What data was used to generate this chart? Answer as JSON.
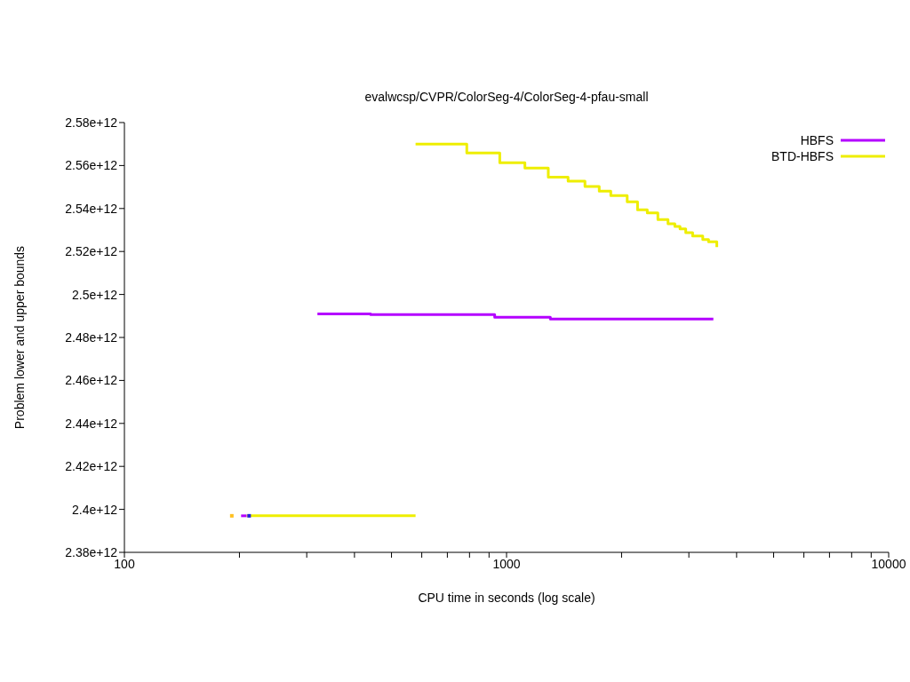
{
  "chart_data": {
    "type": "step",
    "title": "evalwcsp/CVPR/ColorSeg-4/ColorSeg-4-pfau-small",
    "xlabel": "CPU time in seconds (log scale)",
    "ylabel": "Problem lower and upper bounds",
    "log": "x",
    "legend": "top right",
    "grid": false,
    "xlim": [
      100,
      10000
    ],
    "xticks": [
      100,
      {
        "value": 200,
        "label": null
      },
      {
        "value": 300,
        "label": null
      },
      {
        "value": 400,
        "label": null
      },
      {
        "value": 500,
        "label": null
      },
      {
        "value": 600,
        "label": null
      },
      {
        "value": 700,
        "label": null
      },
      {
        "value": 800,
        "label": null
      },
      {
        "value": 900,
        "label": null
      },
      1000,
      {
        "value": 2000,
        "label": null
      },
      {
        "value": 3000,
        "label": null
      },
      {
        "value": 4000,
        "label": null
      },
      {
        "value": 5000,
        "label": null
      },
      {
        "value": 6000,
        "label": null
      },
      {
        "value": 7000,
        "label": null
      },
      {
        "value": 8000,
        "label": null
      },
      {
        "value": 9000,
        "label": null
      },
      10000
    ],
    "ylim": [
      2380000000000.0,
      2580000000000.0
    ],
    "yticks": [
      {
        "value": 2380000000000.0,
        "label": "2.38e+12"
      },
      {
        "value": 2400000000000.0,
        "label": "2.4e+12"
      },
      {
        "value": 2420000000000.0,
        "label": "2.42e+12"
      },
      {
        "value": 2440000000000.0,
        "label": "2.44e+12"
      },
      {
        "value": 2460000000000.0,
        "label": "2.46e+12"
      },
      {
        "value": 2480000000000.0,
        "label": "2.48e+12"
      },
      {
        "value": 2500000000000.0,
        "label": "2.5e+12"
      },
      {
        "value": 2520000000000.0,
        "label": "2.52e+12"
      },
      {
        "value": 2540000000000.0,
        "label": "2.54e+12"
      },
      {
        "value": 2560000000000.0,
        "label": "2.56e+12"
      },
      {
        "value": 2580000000000.0,
        "label": "2.58e+12"
      }
    ],
    "series": [
      {
        "name": "HBFS",
        "color": "#b400ff",
        "x": [
          320,
          441,
          931,
          1302,
          3477
        ],
        "values": [
          2491000000000.0,
          2490600000000.0,
          2489400000000.0,
          2488600000000.0,
          2488600000000.0
        ]
      },
      {
        "color": "#b400ff",
        "x": [
          202,
          209
        ],
        "values": [
          2397000000000.0,
          2397000000000.0
        ]
      },
      {
        "color": "#eeee00",
        "x": [
          209,
          578
        ],
        "values": [
          2397000000000.0,
          2397000000000.0
        ]
      },
      {
        "name": "BTD-HBFS",
        "color": "#eeee00",
        "x": [
          578,
          787,
          960,
          1117,
          1286,
          1449,
          1604,
          1748,
          1874,
          2069,
          2202,
          2335,
          2489,
          2646,
          2757,
          2844,
          2944,
          3069,
          3262,
          3378,
          3550,
          3550
        ],
        "values": [
          2570000000000.0,
          2565800000000.0,
          2561300000000.0,
          2558800000000.0,
          2554600000000.0,
          2552700000000.0,
          2550200000000.0,
          2548100000000.0,
          2546000000000.0,
          2543100000000.0,
          2539400000000.0,
          2538000000000.0,
          2534900000000.0,
          2532900000000.0,
          2531700000000.0,
          2530500000000.0,
          2528800000000.0,
          2527200000000.0,
          2525600000000.0,
          2524500000000.0,
          2524500000000.0,
          2522000000000.0
        ]
      },
      {
        "type": "scatter",
        "marker": "square",
        "color": "#ffc020",
        "x": [
          191
        ],
        "values": [
          2397000000000.0
        ]
      },
      {
        "type": "scatter",
        "marker": "square",
        "color": "#2020e0",
        "x": [
          212
        ],
        "values": [
          2397000000000.0
        ]
      }
    ]
  }
}
